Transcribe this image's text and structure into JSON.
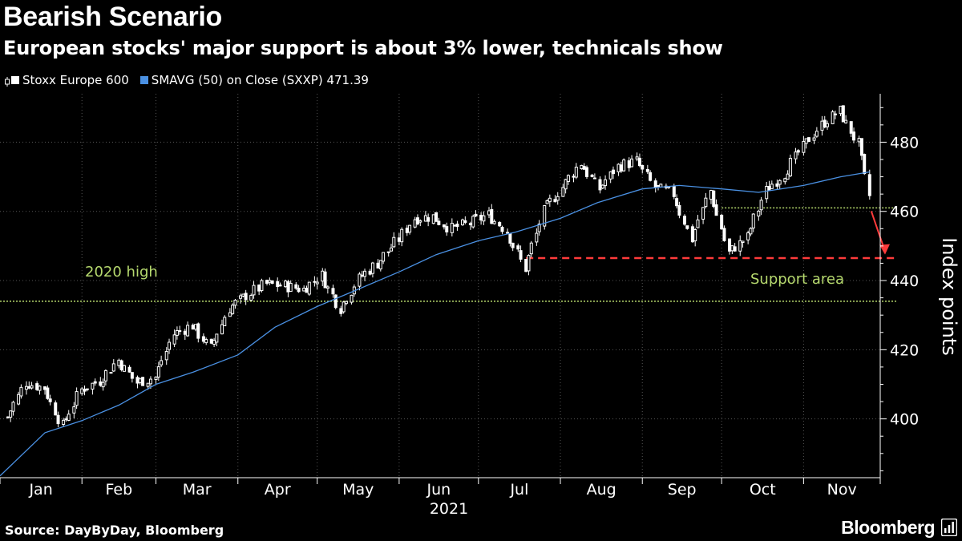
{
  "header": {
    "title": "Bearish Scenario",
    "subtitle": "European stocks' major support is about 3% lower, technicals show"
  },
  "legend": {
    "series1": "Stoxx Europe 600",
    "series2": "SMAVG (50)  on Close (SXXP) 471.39"
  },
  "footer": {
    "source": "Source: DayByDay, Bloomberg",
    "brand": "Bloomberg"
  },
  "colors": {
    "background": "#000000",
    "candle": "#ffffff",
    "sma": "#4a90e2",
    "support_line": "#b6d96e",
    "arrow": "#ff3b3b"
  },
  "chart_data": {
    "type": "line",
    "xlabel": "2021",
    "ylabel": "Index points",
    "ylim": [
      383,
      494
    ],
    "yticks": [
      400,
      420,
      440,
      460,
      480
    ],
    "months": [
      "Jan",
      "Feb",
      "Mar",
      "Apr",
      "May",
      "Jun",
      "Jul",
      "Aug",
      "Sep",
      "Oct",
      "Nov"
    ],
    "grid": true,
    "series": [
      {
        "name": "Stoxx Europe 600",
        "style": "candlestick",
        "points": [
          [
            "2021-01-04",
            400.5
          ],
          [
            "2021-01-11",
            410.5
          ],
          [
            "2021-01-18",
            409.0
          ],
          [
            "2021-01-25",
            398.0
          ],
          [
            "2021-02-01",
            408.5
          ],
          [
            "2021-02-08",
            411.0
          ],
          [
            "2021-02-15",
            417.0
          ],
          [
            "2021-02-22",
            410.5
          ],
          [
            "2021-03-01",
            412.0
          ],
          [
            "2021-03-08",
            424.5
          ],
          [
            "2021-03-15",
            427.0
          ],
          [
            "2021-03-22",
            420.5
          ],
          [
            "2021-03-29",
            432.0
          ],
          [
            "2021-04-06",
            436.5
          ],
          [
            "2021-04-12",
            439.0
          ],
          [
            "2021-04-19",
            438.5
          ],
          [
            "2021-04-26",
            437.5
          ],
          [
            "2021-05-03",
            441.5
          ],
          [
            "2021-05-10",
            432.0
          ],
          [
            "2021-05-17",
            440.5
          ],
          [
            "2021-05-24",
            445.0
          ],
          [
            "2021-06-01",
            452.0
          ],
          [
            "2021-06-07",
            458.0
          ],
          [
            "2021-06-14",
            458.5
          ],
          [
            "2021-06-21",
            455.0
          ],
          [
            "2021-06-28",
            456.5
          ],
          [
            "2021-07-05",
            459.0
          ],
          [
            "2021-07-12",
            454.5
          ],
          [
            "2021-07-19",
            443.5
          ],
          [
            "2021-07-26",
            460.0
          ],
          [
            "2021-08-02",
            467.0
          ],
          [
            "2021-08-09",
            474.0
          ],
          [
            "2021-08-16",
            466.5
          ],
          [
            "2021-08-23",
            473.0
          ],
          [
            "2021-08-30",
            474.5
          ],
          [
            "2021-09-06",
            467.0
          ],
          [
            "2021-09-13",
            465.0
          ],
          [
            "2021-09-20",
            452.0
          ],
          [
            "2021-09-27",
            466.0
          ],
          [
            "2021-10-04",
            448.0
          ],
          [
            "2021-10-11",
            452.5
          ],
          [
            "2021-10-18",
            466.0
          ],
          [
            "2021-10-25",
            471.0
          ],
          [
            "2021-11-01",
            478.5
          ],
          [
            "2021-11-08",
            485.0
          ],
          [
            "2021-11-15",
            489.0
          ],
          [
            "2021-11-22",
            479.5
          ],
          [
            "2021-11-26",
            464.5
          ]
        ]
      },
      {
        "name": "SMAVG (50)  on Close (SXXP) 471.39",
        "points": [
          [
            "2021-01-01",
            383.5
          ],
          [
            "2021-01-18",
            396.0
          ],
          [
            "2021-02-01",
            399.5
          ],
          [
            "2021-02-15",
            404.0
          ],
          [
            "2021-03-01",
            410.0
          ],
          [
            "2021-03-15",
            413.5
          ],
          [
            "2021-04-01",
            418.5
          ],
          [
            "2021-04-15",
            426.5
          ],
          [
            "2021-05-01",
            432.5
          ],
          [
            "2021-05-15",
            437.0
          ],
          [
            "2021-06-01",
            442.5
          ],
          [
            "2021-06-15",
            447.5
          ],
          [
            "2021-07-01",
            451.5
          ],
          [
            "2021-07-15",
            454.0
          ],
          [
            "2021-08-01",
            458.0
          ],
          [
            "2021-08-15",
            462.5
          ],
          [
            "2021-09-01",
            466.5
          ],
          [
            "2021-09-15",
            467.5
          ],
          [
            "2021-10-01",
            466.5
          ],
          [
            "2021-10-15",
            465.5
          ],
          [
            "2021-11-01",
            467.5
          ],
          [
            "2021-11-15",
            470.0
          ],
          [
            "2021-11-26",
            471.4
          ]
        ]
      }
    ],
    "reference_lines": [
      {
        "label": "2020 high",
        "value": 434.0,
        "start": "2021-01-01",
        "end": "2021-11-30",
        "style": "dotted"
      },
      {
        "label": "",
        "value": 461.0,
        "start": "2021-10-01",
        "end": "2021-11-30",
        "style": "dotted"
      },
      {
        "label": "Support area",
        "value": 446.5,
        "start": "2021-07-19",
        "end": "2021-11-30",
        "style": "dashed"
      }
    ]
  }
}
